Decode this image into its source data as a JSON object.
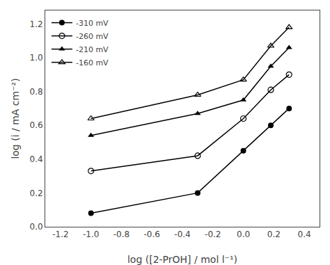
{
  "chart_data": {
    "type": "line",
    "xlabel": "log ([2-PrOH] / mol l⁻¹)",
    "ylabel": "log (i / mA cm⁻²)",
    "series": [
      {
        "name": "-310 mV",
        "x": [
          -1.0,
          -0.3,
          0.0,
          0.18,
          0.3
        ],
        "values": [
          0.08,
          0.2,
          0.45,
          0.6,
          0.7
        ],
        "marker": "circle",
        "color": "black"
      },
      {
        "name": "-260 mV",
        "x": [
          -1.0,
          -0.3,
          0.0,
          0.18,
          0.3
        ],
        "values": [
          0.33,
          0.42,
          0.64,
          0.81,
          0.9
        ],
        "marker": "circle-open",
        "color": "black"
      },
      {
        "name": "-210 mV",
        "x": [
          -1.0,
          -0.3,
          0.0,
          0.18,
          0.3
        ],
        "values": [
          0.54,
          0.67,
          0.75,
          0.95,
          1.06
        ],
        "marker": "triangle-up",
        "color": "black"
      },
      {
        "name": "-160 mV",
        "x": [
          -1.0,
          -0.3,
          0.0,
          0.18,
          0.3
        ],
        "values": [
          0.64,
          0.78,
          0.87,
          1.07,
          1.18
        ],
        "marker": "triangle-up-open",
        "color": "black"
      }
    ],
    "xlim": [
      -1.3,
      0.5
    ],
    "ylim": [
      0.0,
      1.28
    ],
    "xticks": [
      -1.2,
      {
        "value": -1.0,
        "label": "-1.0"
      },
      -0.8,
      -0.6,
      -0.4,
      -0.2,
      {
        "value": 0.0,
        "label": "0.0"
      },
      0.2,
      0.4
    ],
    "yticks": [
      {
        "value": 0.0,
        "label": "0.0"
      },
      0.2,
      0.4,
      0.6,
      0.8,
      {
        "value": 1.0,
        "label": "1.0"
      },
      1.2
    ],
    "grid": false,
    "legend": "upper left"
  }
}
